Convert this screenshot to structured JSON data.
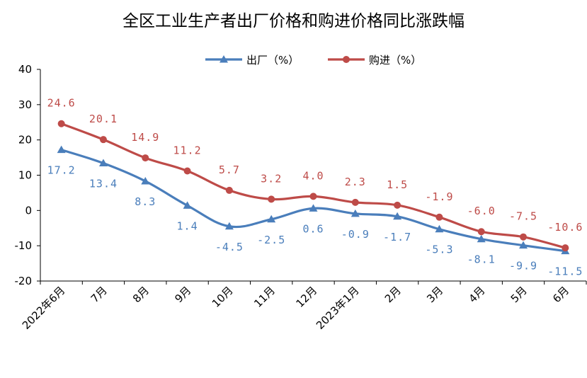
{
  "chart_data": {
    "type": "line",
    "title": "全区工业生产者出厂价格和购进价格同比涨跌幅",
    "categories": [
      "2022年6月",
      "7月",
      "8月",
      "9月",
      "10月",
      "11月",
      "12月",
      "2023年1月",
      "2月",
      "3月",
      "4月",
      "5月",
      "6月"
    ],
    "ylim": [
      -20,
      40
    ],
    "yticks": [
      "40",
      "30",
      "20",
      "10",
      "0",
      "-10",
      "-20"
    ],
    "grid": false,
    "legend_position": "top-center",
    "series": [
      {
        "name": "出厂（%）",
        "color": "#4a7ebb",
        "marker": "triangle",
        "values": [
          17.2,
          13.4,
          8.3,
          1.4,
          -4.5,
          -2.5,
          0.6,
          -0.9,
          -1.7,
          -5.3,
          -8.1,
          -9.9,
          -11.5
        ],
        "labels": [
          "17.2",
          "13.4",
          "8.3",
          "1.4",
          "-4.5",
          "-2.5",
          "0.6",
          "-0.9",
          "-1.7",
          "-5.3",
          "-8.1",
          "-9.9",
          "-11.5"
        ]
      },
      {
        "name": "购进（%）",
        "color": "#be4b48",
        "marker": "circle",
        "values": [
          24.6,
          20.1,
          14.9,
          11.2,
          5.7,
          3.2,
          4.0,
          2.3,
          1.5,
          -1.9,
          -6.0,
          -7.5,
          -10.6
        ],
        "labels": [
          "24.6",
          "20.1",
          "14.9",
          "11.2",
          "5.7",
          "3.2",
          "4.0",
          "2.3",
          "1.5",
          "-1.9",
          "-6.0",
          "-7.5",
          "-10.6"
        ]
      }
    ]
  }
}
